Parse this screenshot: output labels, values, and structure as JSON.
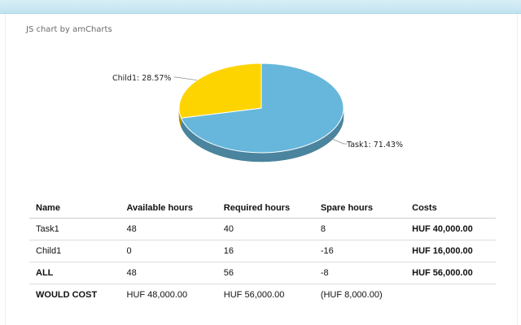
{
  "credit": "JS chart by amCharts",
  "colors": {
    "task1": "#67b7dc",
    "child1": "#fdd400"
  },
  "chart_data": {
    "type": "pie",
    "slices": [
      {
        "name": "Task1",
        "label": "Task1: 71.43%",
        "value": 71.43,
        "color": "#67b7dc"
      },
      {
        "name": "Child1",
        "label": "Child1: 28.57%",
        "value": 28.57,
        "color": "#fdd400"
      }
    ]
  },
  "table": {
    "headers": [
      "Name",
      "Available hours",
      "Required hours",
      "Spare hours",
      "Costs"
    ],
    "rows": [
      {
        "name": "Task1",
        "available": "48",
        "required": "40",
        "spare": "8",
        "costs": "HUF 40,000.00"
      },
      {
        "name": "Child1",
        "available": "0",
        "required": "16",
        "spare": "-16",
        "costs": "HUF 16,000.00"
      },
      {
        "name": "ALL",
        "available": "48",
        "required": "56",
        "spare": "-8",
        "costs": "HUF 56,000.00"
      },
      {
        "name": "WOULD COST",
        "available": "HUF 48,000.00",
        "required": "HUF 56,000.00",
        "spare": "(HUF 8,000.00)",
        "costs": ""
      }
    ]
  }
}
